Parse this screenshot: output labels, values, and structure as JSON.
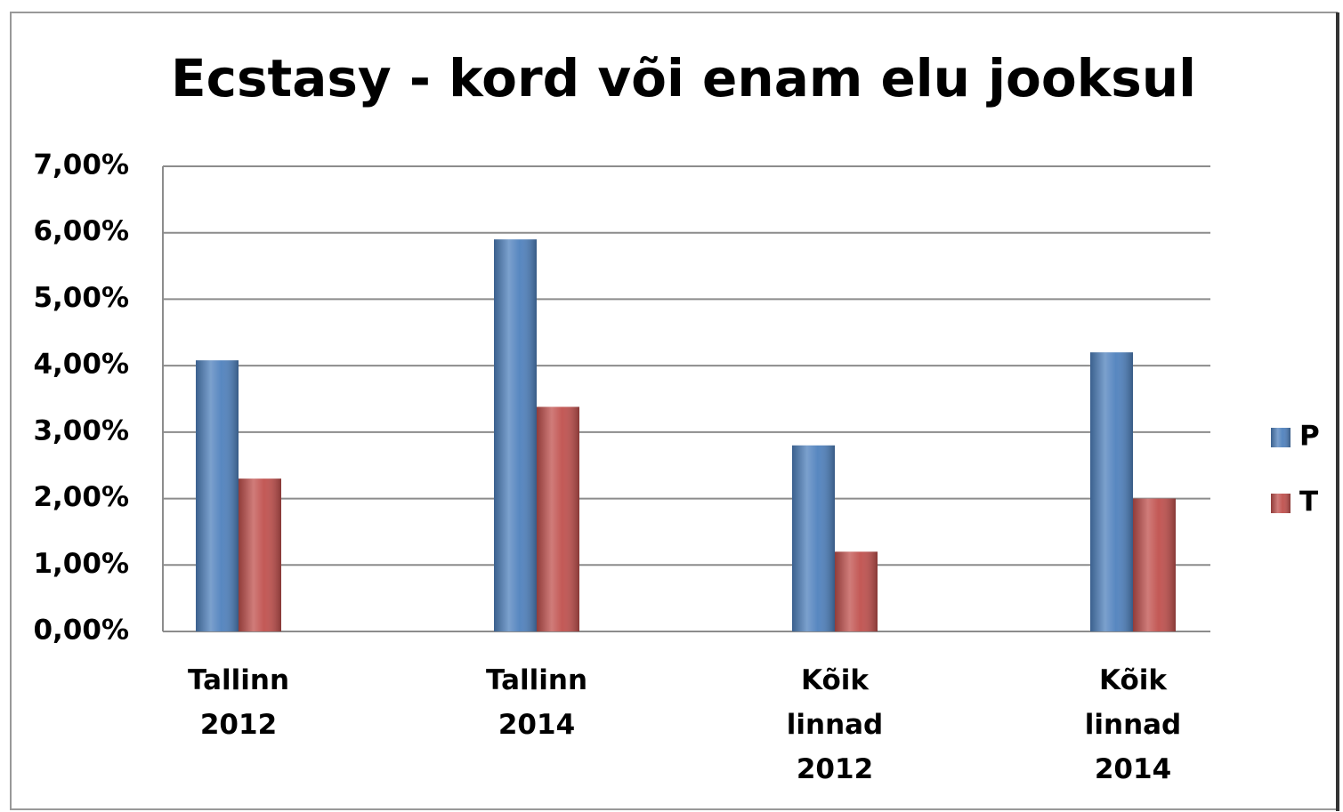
{
  "chart_data": {
    "type": "bar",
    "title": "Ecstasy - kord või enam elu jooksul",
    "categories": [
      [
        "Tallinn",
        "2012"
      ],
      [
        "Tallinn",
        "2014"
      ],
      [
        "Kõik",
        "linnad",
        "2012"
      ],
      [
        "Kõik",
        "linnad",
        "2014"
      ]
    ],
    "series": [
      {
        "name": "P",
        "color": "#4f81bd",
        "values": [
          4.08,
          5.9,
          2.8,
          4.2
        ]
      },
      {
        "name": "T",
        "color": "#c0504d",
        "values": [
          2.3,
          3.38,
          1.2,
          2.0
        ]
      }
    ],
    "ylim": [
      0,
      7
    ],
    "yticks": [
      {
        "value": 0,
        "label": "0,00%"
      },
      {
        "value": 1,
        "label": "1,00%"
      },
      {
        "value": 2,
        "label": "2,00%"
      },
      {
        "value": 3,
        "label": "3,00%"
      },
      {
        "value": 4,
        "label": "4,00%"
      },
      {
        "value": 5,
        "label": "5,00%"
      },
      {
        "value": 6,
        "label": "6,00%"
      },
      {
        "value": 7,
        "label": "7,00%"
      }
    ],
    "grid": true,
    "legend": "right"
  }
}
